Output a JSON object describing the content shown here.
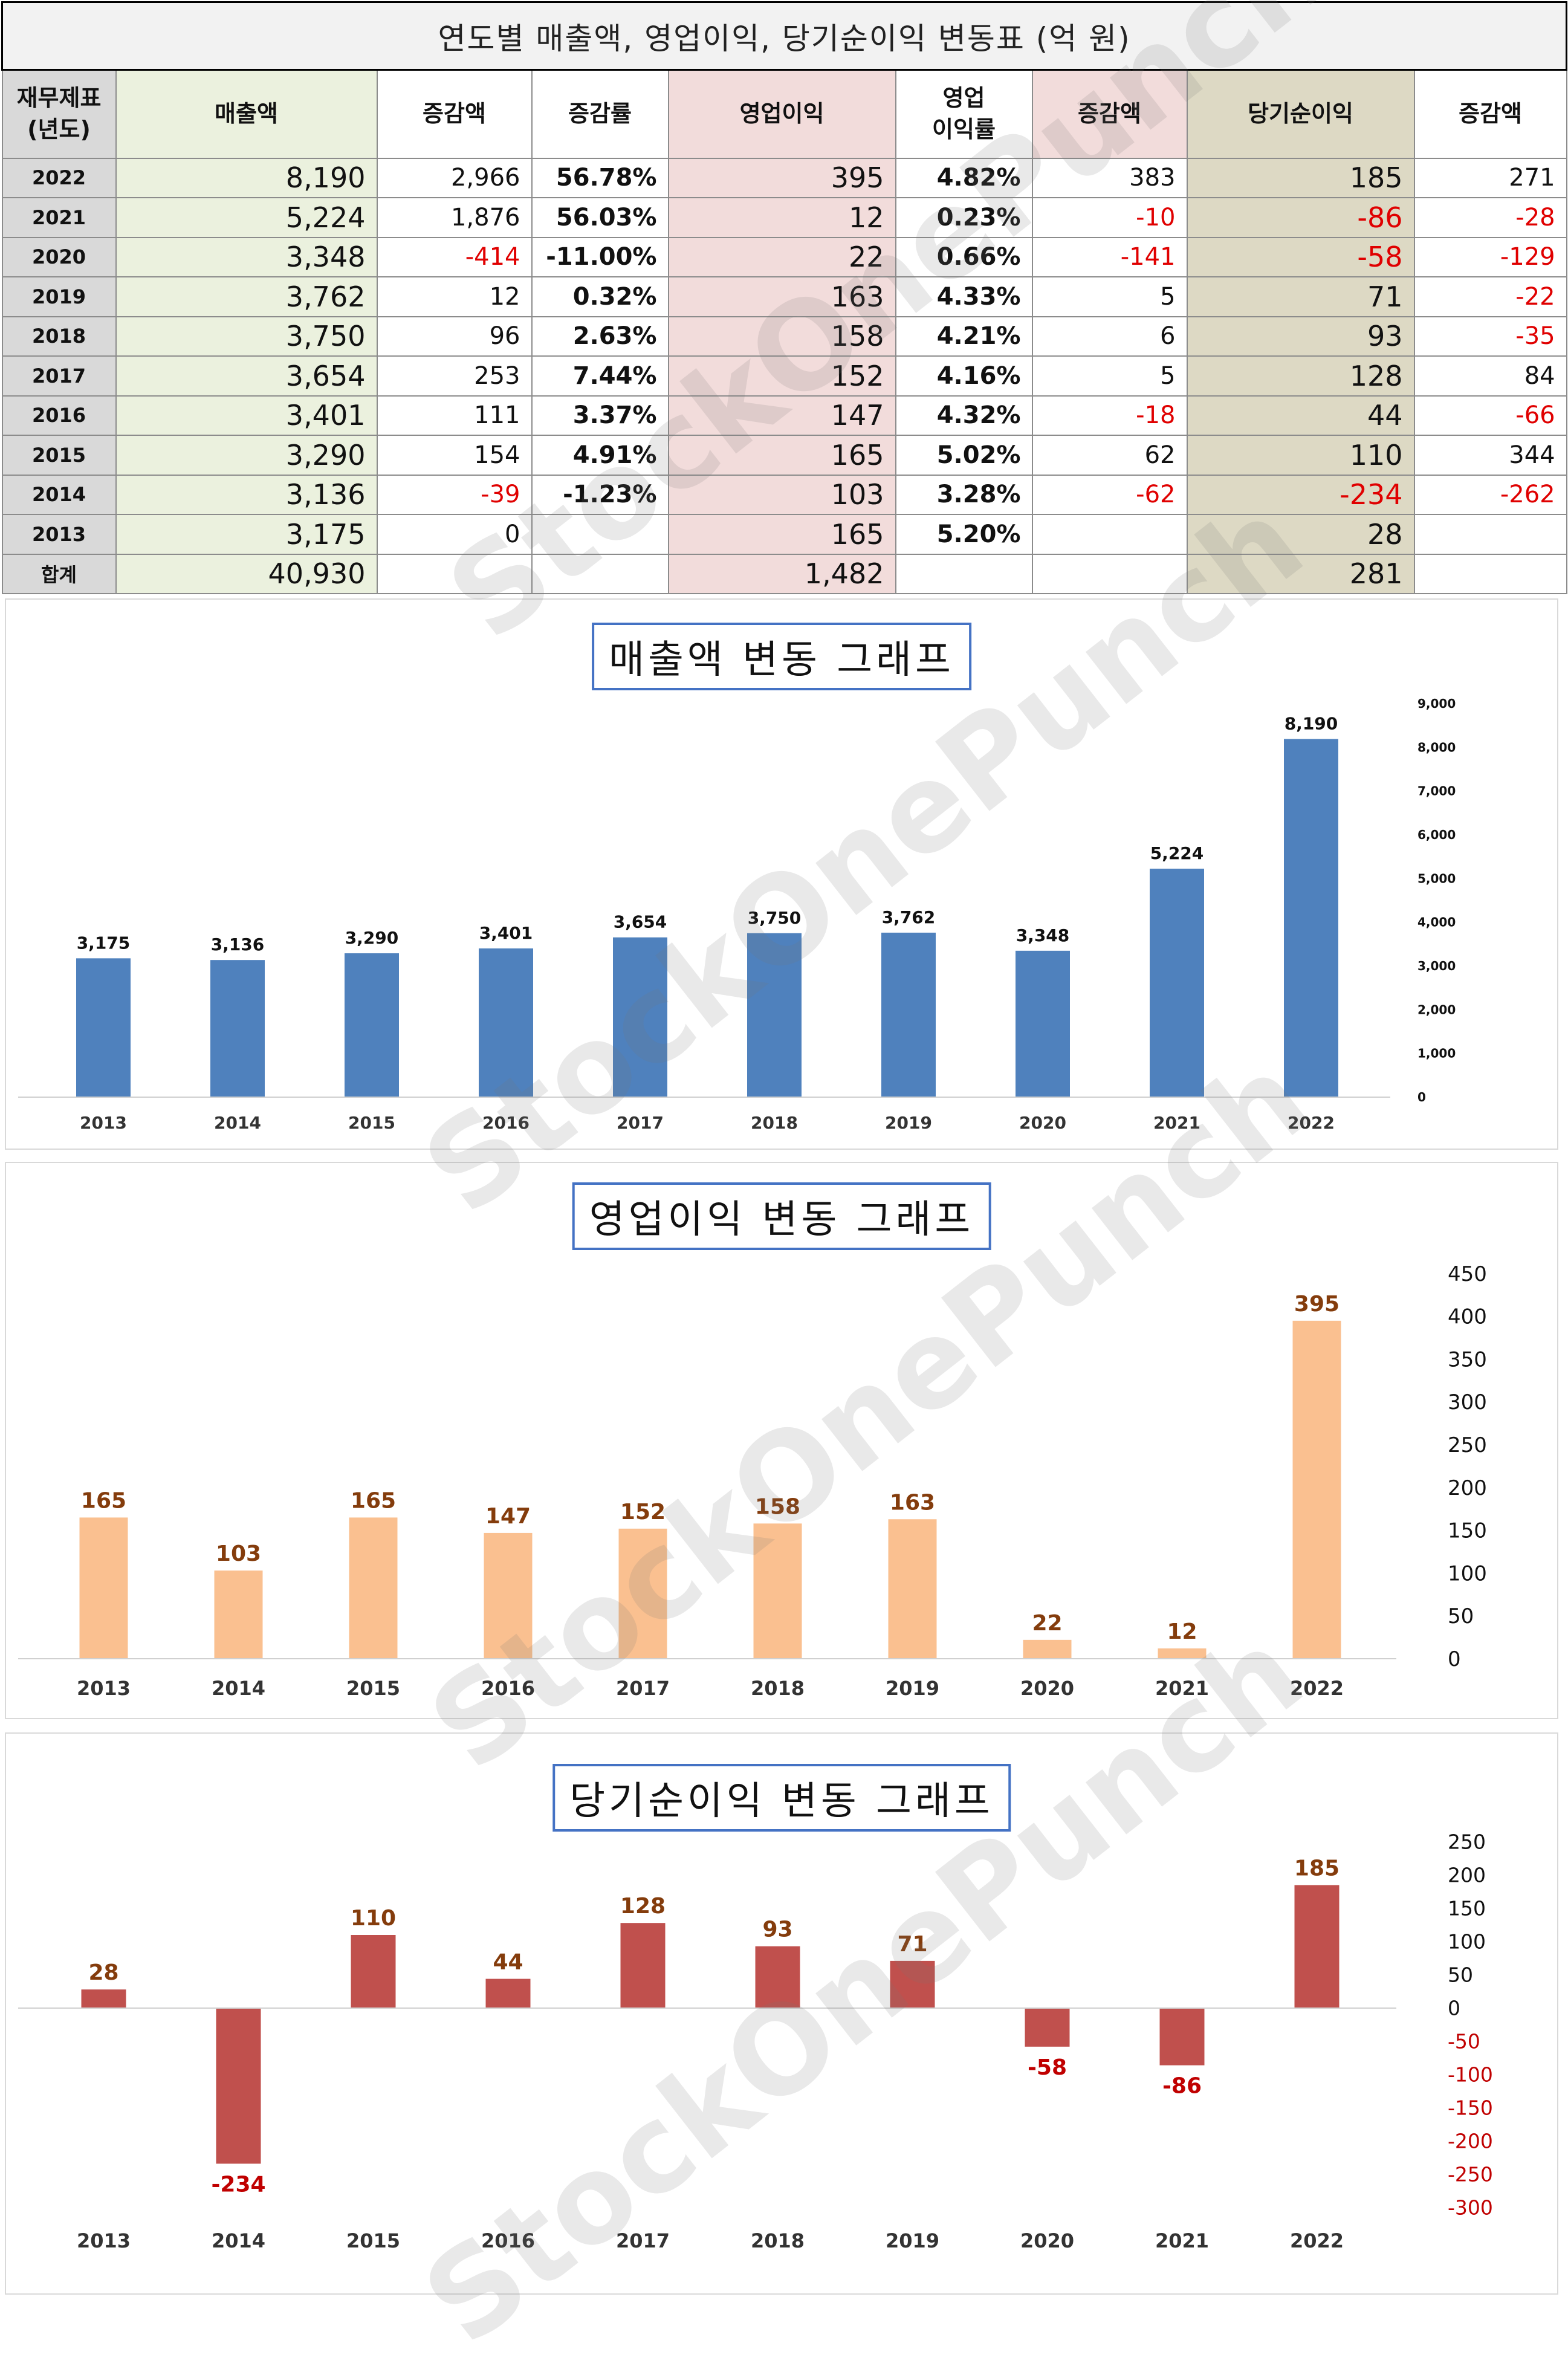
{
  "table": {
    "title": "연도별 매출액, 영업이익, 당기순이익 변동표   (억 원)",
    "headers": {
      "year": [
        "재무제표",
        "(년도)"
      ],
      "sales": "매출액",
      "sales_change": "증감액",
      "sales_rate": "증감률",
      "op_profit": "영업이익",
      "op_margin": [
        "영업",
        "이익률"
      ],
      "op_change": "증감액",
      "net_income": "당기순이익",
      "net_change": "증감액"
    },
    "rows": [
      {
        "year": "2022",
        "sales": "8,190",
        "sales_change": "2,966",
        "sales_rate": "56.78%",
        "op_profit": "395",
        "op_margin": "4.82%",
        "op_change": "383",
        "net_income": "185",
        "net_change": "271"
      },
      {
        "year": "2021",
        "sales": "5,224",
        "sales_change": "1,876",
        "sales_rate": "56.03%",
        "op_profit": "12",
        "op_margin": "0.23%",
        "op_change": "-10",
        "net_income": "-86",
        "net_change": "-28"
      },
      {
        "year": "2020",
        "sales": "3,348",
        "sales_change": "-414",
        "sales_rate": "-11.00%",
        "op_profit": "22",
        "op_margin": "0.66%",
        "op_change": "-141",
        "net_income": "-58",
        "net_change": "-129"
      },
      {
        "year": "2019",
        "sales": "3,762",
        "sales_change": "12",
        "sales_rate": "0.32%",
        "op_profit": "163",
        "op_margin": "4.33%",
        "op_change": "5",
        "net_income": "71",
        "net_change": "-22"
      },
      {
        "year": "2018",
        "sales": "3,750",
        "sales_change": "96",
        "sales_rate": "2.63%",
        "op_profit": "158",
        "op_margin": "4.21%",
        "op_change": "6",
        "net_income": "93",
        "net_change": "-35"
      },
      {
        "year": "2017",
        "sales": "3,654",
        "sales_change": "253",
        "sales_rate": "7.44%",
        "op_profit": "152",
        "op_margin": "4.16%",
        "op_change": "5",
        "net_income": "128",
        "net_change": "84"
      },
      {
        "year": "2016",
        "sales": "3,401",
        "sales_change": "111",
        "sales_rate": "3.37%",
        "op_profit": "147",
        "op_margin": "4.32%",
        "op_change": "-18",
        "net_income": "44",
        "net_change": "-66"
      },
      {
        "year": "2015",
        "sales": "3,290",
        "sales_change": "154",
        "sales_rate": "4.91%",
        "op_profit": "165",
        "op_margin": "5.02%",
        "op_change": "62",
        "net_income": "110",
        "net_change": "344"
      },
      {
        "year": "2014",
        "sales": "3,136",
        "sales_change": "-39",
        "sales_rate": "-1.23%",
        "op_profit": "103",
        "op_margin": "3.28%",
        "op_change": "-62",
        "net_income": "-234",
        "net_change": "-262"
      },
      {
        "year": "2013",
        "sales": "3,175",
        "sales_change": "0",
        "sales_rate": "",
        "op_profit": "165",
        "op_margin": "5.20%",
        "op_change": "",
        "net_income": "28",
        "net_change": ""
      }
    ],
    "total": {
      "label": "합계",
      "sales": "40,930",
      "op_profit": "1,482",
      "net_income": "281"
    }
  },
  "watermark": "StockOnePunch",
  "colors": {
    "sales_bar": "#4f81bd",
    "op_bar": "#fac090",
    "net_bar": "#c0504d",
    "op_label": "#843c0c",
    "net_label_pos": "#843c0c",
    "net_label_neg": "#c00000",
    "title_border": "#4472c4"
  },
  "chart_data": [
    {
      "type": "bar",
      "title": "매출액 변동 그래프",
      "categories": [
        "2013",
        "2014",
        "2015",
        "2016",
        "2017",
        "2018",
        "2019",
        "2020",
        "2021",
        "2022"
      ],
      "values": [
        3175,
        3136,
        3290,
        3401,
        3654,
        3750,
        3762,
        3348,
        5224,
        8190
      ],
      "value_labels": [
        "3,175",
        "3,136",
        "3,290",
        "3,401",
        "3,654",
        "3,750",
        "3,762",
        "3,348",
        "5,224",
        "8,190"
      ],
      "ylim": [
        0,
        9000
      ],
      "yticks": [
        0,
        1000,
        2000,
        3000,
        4000,
        5000,
        6000,
        7000,
        8000,
        9000
      ],
      "ytick_labels": [
        "0",
        "1,000",
        "2,000",
        "3,000",
        "4,000",
        "5,000",
        "6,000",
        "7,000",
        "8,000",
        "9,000"
      ],
      "y_axis_position": "right",
      "grid": false
    },
    {
      "type": "bar",
      "title": "영업이익 변동 그래프",
      "categories": [
        "2013",
        "2014",
        "2015",
        "2016",
        "2017",
        "2018",
        "2019",
        "2020",
        "2021",
        "2022"
      ],
      "values": [
        165,
        103,
        165,
        147,
        152,
        158,
        163,
        22,
        12,
        395
      ],
      "value_labels": [
        "165",
        "103",
        "165",
        "147",
        "152",
        "158",
        "163",
        "22",
        "12",
        "395"
      ],
      "ylim": [
        0,
        450
      ],
      "yticks": [
        0,
        50,
        100,
        150,
        200,
        250,
        300,
        350,
        400,
        450
      ],
      "ytick_labels": [
        "0",
        "50",
        "100",
        "150",
        "200",
        "250",
        "300",
        "350",
        "400",
        "450"
      ],
      "y_axis_position": "right",
      "grid": false
    },
    {
      "type": "bar",
      "title": "당기순이익 변동 그래프",
      "categories": [
        "2013",
        "2014",
        "2015",
        "2016",
        "2017",
        "2018",
        "2019",
        "2020",
        "2021",
        "2022"
      ],
      "values": [
        28,
        -234,
        110,
        44,
        128,
        93,
        71,
        -58,
        -86,
        185
      ],
      "value_labels": [
        "28",
        "-234",
        "110",
        "44",
        "128",
        "93",
        "71",
        "-58",
        "-86",
        "185"
      ],
      "ylim": [
        -300,
        250
      ],
      "yticks": [
        -300,
        -250,
        -200,
        -150,
        -100,
        -50,
        0,
        50,
        100,
        150,
        200,
        250
      ],
      "ytick_labels": [
        "-300",
        "-250",
        "-200",
        "-150",
        "-100",
        "-50",
        "0",
        "50",
        "100",
        "150",
        "200",
        "250"
      ],
      "y_axis_position": "right",
      "grid": false
    }
  ]
}
